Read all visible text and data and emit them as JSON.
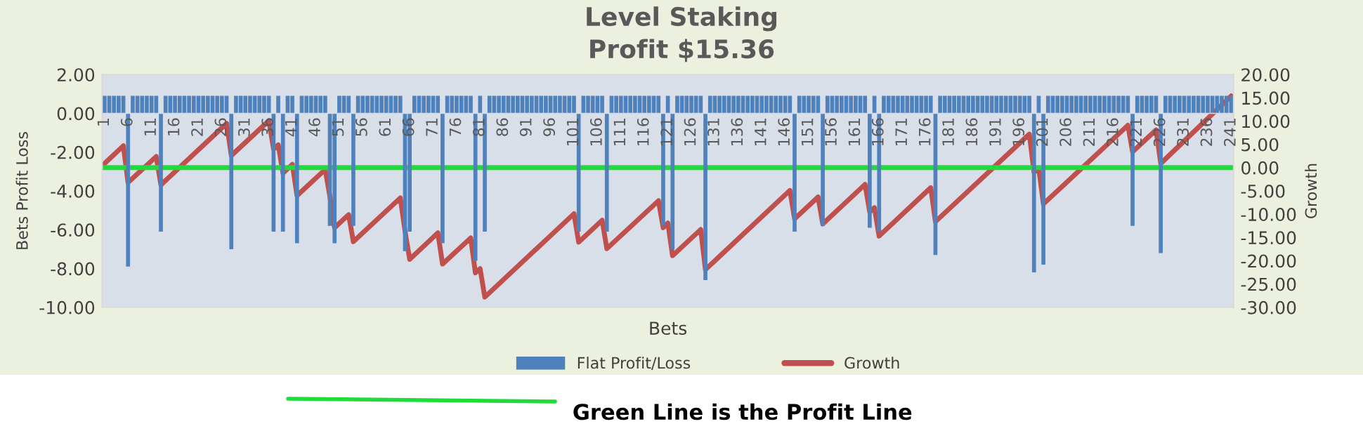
{
  "chart_data": {
    "type": "bar",
    "title": "Level Staking\nProfit $15.36",
    "xlabel": "Bets",
    "ylabel": "Bets Profit Loss",
    "y2label": "Growth",
    "x": [
      1,
      2,
      3,
      4,
      5,
      6,
      7,
      8,
      9,
      10,
      11,
      12,
      13,
      14,
      15,
      16,
      17,
      18,
      19,
      20,
      21,
      22,
      23,
      24,
      25,
      26,
      27,
      28,
      29,
      30,
      31,
      32,
      33,
      34,
      35,
      36,
      37,
      38,
      39,
      40,
      41,
      42,
      43,
      44,
      45,
      46,
      47,
      48,
      49,
      50,
      51,
      52,
      53,
      54,
      55,
      56,
      57,
      58,
      59,
      60,
      61,
      62,
      63,
      64,
      65,
      66,
      67,
      68,
      69,
      70,
      71,
      72,
      73,
      74,
      75,
      76,
      77,
      78,
      79,
      80,
      81,
      82,
      83,
      84,
      85,
      86,
      87,
      88,
      89,
      90,
      91,
      92,
      93,
      94,
      95,
      96,
      97,
      98,
      99,
      100,
      101,
      102,
      103,
      104,
      105,
      106,
      107,
      108,
      109,
      110,
      111,
      112,
      113,
      114,
      115,
      116,
      117,
      118,
      119,
      120,
      121,
      122,
      123,
      124,
      125,
      126,
      127,
      128,
      129,
      130,
      131,
      132,
      133,
      134,
      135,
      136,
      137,
      138,
      139,
      140,
      141,
      142,
      143,
      144,
      145,
      146,
      147,
      148,
      149,
      150,
      151,
      152,
      153,
      154,
      155,
      156,
      157,
      158,
      159,
      160,
      161,
      162,
      163,
      164,
      165,
      166,
      167,
      168,
      169,
      170,
      171,
      172,
      173,
      174,
      175,
      176,
      177,
      178,
      179,
      180,
      181,
      182,
      183,
      184,
      185,
      186,
      187,
      188,
      189,
      190,
      191,
      192,
      193,
      194,
      195,
      196,
      197,
      198,
      199,
      200,
      201,
      202,
      203,
      204,
      205,
      206,
      207,
      208,
      209,
      210,
      211,
      212,
      213,
      214,
      215,
      216,
      217,
      218,
      219,
      220,
      221,
      222,
      223,
      224,
      225,
      226,
      227,
      228,
      229,
      230,
      231,
      232,
      233,
      234,
      235,
      236,
      237,
      238,
      239,
      240,
      241
    ],
    "series": [
      {
        "name": "Flat Profit/Loss",
        "color": "#4f81bd",
        "values": [
          0.9,
          0.9,
          0.9,
          0.9,
          0.9,
          -7.9,
          0.9,
          0.9,
          0.9,
          0.9,
          0.9,
          0.9,
          -6.1,
          0.9,
          0.9,
          0.9,
          0.9,
          0.9,
          0.9,
          0.9,
          0.9,
          0.9,
          0.9,
          0.9,
          0.9,
          0.9,
          0.9,
          -7.0,
          0.9,
          0.9,
          0.9,
          0.9,
          0.9,
          0.9,
          0.9,
          0.9,
          -6.1,
          0.9,
          -6.1,
          0.9,
          0.9,
          -6.7,
          0.9,
          0.9,
          0.9,
          0.9,
          0.9,
          0.9,
          -5.8,
          -6.7,
          0.9,
          0.9,
          0.9,
          -5.8,
          0.9,
          0.9,
          0.9,
          0.9,
          0.9,
          0.9,
          0.9,
          0.9,
          0.9,
          0.9,
          -7.1,
          -6.1,
          0.9,
          0.9,
          0.9,
          0.9,
          0.9,
          0.9,
          -6.7,
          0.9,
          0.9,
          0.9,
          0.9,
          0.9,
          0.9,
          -7.6,
          0.9,
          -6.1,
          0.9,
          0.9,
          0.9,
          0.9,
          0.9,
          0.9,
          0.9,
          0.9,
          0.9,
          0.9,
          0.9,
          0.9,
          0.9,
          0.9,
          0.9,
          0.9,
          0.9,
          0.9,
          0.9,
          -6.1,
          0.9,
          0.9,
          0.9,
          0.9,
          0.9,
          -6.1,
          0.9,
          0.9,
          0.9,
          0.9,
          0.9,
          0.9,
          0.9,
          0.9,
          0.9,
          0.9,
          0.9,
          -5.8,
          0.9,
          -7.0,
          0.9,
          0.9,
          0.9,
          0.9,
          0.9,
          0.9,
          -8.6,
          0.9,
          0.9,
          0.9,
          0.9,
          0.9,
          0.9,
          0.9,
          0.9,
          0.9,
          0.9,
          0.9,
          0.9,
          0.9,
          0.9,
          0.9,
          0.9,
          0.9,
          0.9,
          -6.1,
          0.9,
          0.9,
          0.9,
          0.9,
          0.9,
          -5.8,
          0.9,
          0.9,
          0.9,
          0.9,
          0.9,
          0.9,
          0.9,
          0.9,
          0.9,
          -5.9,
          0.9,
          -6.1,
          0.9,
          0.9,
          0.9,
          0.9,
          0.9,
          0.9,
          0.9,
          0.9,
          0.9,
          0.9,
          0.9,
          -7.3,
          0.9,
          0.9,
          0.9,
          0.9,
          0.9,
          0.9,
          0.9,
          0.9,
          0.9,
          0.9,
          0.9,
          0.9,
          0.9,
          0.9,
          0.9,
          0.9,
          0.9,
          0.9,
          0.9,
          0.9,
          -8.2,
          0.9,
          -7.8,
          0.9,
          0.9,
          0.9,
          0.9,
          0.9,
          0.9,
          0.9,
          0.9,
          0.9,
          0.9,
          0.9,
          0.9,
          0.9,
          0.9,
          0.9,
          0.9,
          0.9,
          0.9,
          -5.8,
          0.9,
          0.9,
          0.9,
          0.9,
          0.9,
          -7.2,
          0.9,
          0.9,
          0.9,
          0.9,
          0.9,
          0.9,
          0.9,
          0.9,
          0.9,
          0.9,
          0.9,
          0.9,
          0.9,
          0.9,
          0.9
        ]
      },
      {
        "name": "Growth",
        "type": "line",
        "axis": "y2",
        "color": "#c0504d",
        "x": [
          1,
          5,
          6,
          12,
          13,
          27,
          28,
          36,
          37,
          38,
          39,
          41,
          42,
          48,
          49,
          50,
          53,
          54,
          64,
          65,
          66,
          72,
          73,
          79,
          80,
          81,
          82,
          101,
          102,
          107,
          108,
          119,
          120,
          121,
          122,
          128,
          129,
          147,
          148,
          153,
          154,
          163,
          164,
          165,
          166,
          177,
          178,
          198,
          199,
          200,
          201,
          219,
          220,
          225,
          226,
          241
        ],
        "values": [
          0.9,
          4.7,
          -3.2,
          2.4,
          -3.7,
          9.5,
          2.6,
          10.1,
          4.0,
          4.9,
          -1.2,
          0.7,
          -6.0,
          -0.4,
          -6.2,
          -12.9,
          -10.1,
          -15.9,
          -6.5,
          -13.6,
          -19.7,
          -14.0,
          -20.7,
          -15.1,
          -22.6,
          -21.7,
          -27.8,
          -9.9,
          -16.0,
          -11.3,
          -17.4,
          -7.1,
          -12.9,
          -11.9,
          -18.9,
          -13.3,
          -21.9,
          -4.9,
          -11.0,
          -6.3,
          -12.1,
          -3.6,
          -9.5,
          -8.6,
          -14.7,
          -4.3,
          -11.6,
          7.2,
          -1.0,
          -0.1,
          -7.8,
          9.1,
          3.4,
          8.1,
          0.9,
          15.4
        ]
      }
    ],
    "xlim": [
      0.5,
      241.5
    ],
    "xticks": [
      1,
      6,
      11,
      16,
      21,
      26,
      31,
      36,
      41,
      46,
      51,
      56,
      61,
      66,
      71,
      76,
      81,
      86,
      91,
      96,
      101,
      106,
      111,
      116,
      121,
      126,
      131,
      136,
      141,
      146,
      151,
      156,
      161,
      166,
      171,
      176,
      181,
      186,
      191,
      196,
      201,
      206,
      211,
      216,
      221,
      226,
      231,
      236,
      241
    ],
    "ylim": [
      -10,
      2
    ],
    "yticks": [
      {
        "value": -10,
        "label": "-10.00"
      },
      {
        "value": -8,
        "label": "-8.00"
      },
      {
        "value": -6,
        "label": "-6.00"
      },
      {
        "value": -4,
        "label": "-4.00"
      },
      {
        "value": -2,
        "label": "-2.00"
      },
      {
        "value": 0,
        "label": "0.00"
      },
      {
        "value": 2,
        "label": "2.00"
      }
    ],
    "y2lim": [
      -30,
      20
    ],
    "y2ticks": [
      {
        "value": -30,
        "label": "-30.00"
      },
      {
        "value": -25,
        "label": "-25.00"
      },
      {
        "value": -20,
        "label": "-20.00"
      },
      {
        "value": -15,
        "label": "-15.00"
      },
      {
        "value": -10,
        "label": "-10.00"
      },
      {
        "value": -5,
        "label": "-5.00"
      },
      {
        "value": 0,
        "label": "0.00"
      },
      {
        "value": 5,
        "label": "5.00"
      },
      {
        "value": 10,
        "label": "10.00"
      },
      {
        "value": 15,
        "label": "15.00"
      },
      {
        "value": 20,
        "label": "20.00"
      }
    ],
    "ref_lines": [
      {
        "axis": "y2",
        "value": 0,
        "color": "#1fdc3a"
      }
    ],
    "annotations": [
      "Green Line is the Profit Line"
    ],
    "legend": "bottom",
    "grid": false
  }
}
